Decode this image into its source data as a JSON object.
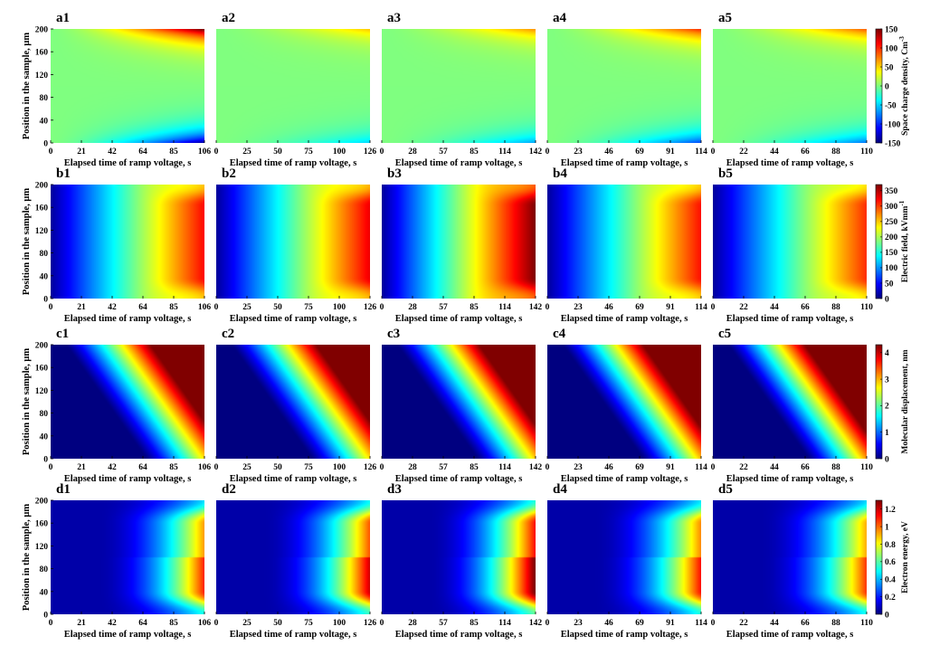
{
  "figure": {
    "colormap": "jet",
    "ylabel": "Position in the sample, μm",
    "xlabel": "Elapsed time of ramp voltage, s"
  },
  "chart_data": {
    "type": "heatmap",
    "rows": [
      {
        "id": "a",
        "colorbar_label": "Space charge density, Cm",
        "colorbar_label_sup": "-3",
        "colorbar_range": [
          -150,
          150
        ],
        "colorbar_ticks": [
          "150",
          "100",
          "50",
          "0",
          "-50",
          "-100",
          "-150"
        ],
        "pattern": "space_charge",
        "panels": [
          {
            "label": "a1",
            "xmax": 106,
            "xticks": [
              "0",
              "21",
              "42",
              "64",
              "85",
              "106"
            ],
            "intensity": 1.0
          },
          {
            "label": "a2",
            "xmax": 126,
            "xticks": [
              "0",
              "25",
              "50",
              "75",
              "100",
              "126"
            ],
            "intensity": 0.35
          },
          {
            "label": "a3",
            "xmax": 142,
            "xticks": [
              "0",
              "28",
              "57",
              "85",
              "114",
              "142"
            ],
            "intensity": 0.45
          },
          {
            "label": "a4",
            "xmax": 114,
            "xticks": [
              "0",
              "23",
              "46",
              "69",
              "91",
              "114"
            ],
            "intensity": 0.65
          },
          {
            "label": "a5",
            "xmax": 110,
            "xticks": [
              "0",
              "22",
              "44",
              "66",
              "88",
              "110"
            ],
            "intensity": 0.55
          }
        ]
      },
      {
        "id": "b",
        "colorbar_label": "Electric field, kVmm",
        "colorbar_label_sup": "-1",
        "colorbar_range": [
          0,
          370
        ],
        "colorbar_ticks": [
          "350",
          "300",
          "250",
          "200",
          "150",
          "100",
          "50",
          "0"
        ],
        "pattern": "field",
        "panels": [
          {
            "label": "b1",
            "xmax": 106,
            "xticks": [
              "0",
              "21",
              "42",
              "64",
              "85",
              "106"
            ],
            "intensity": 0.84
          },
          {
            "label": "b2",
            "xmax": 126,
            "xticks": [
              "0",
              "25",
              "50",
              "75",
              "100",
              "126"
            ],
            "intensity": 0.86
          },
          {
            "label": "b3",
            "xmax": 142,
            "xticks": [
              "0",
              "28",
              "57",
              "85",
              "114",
              "142"
            ],
            "intensity": 0.97
          },
          {
            "label": "b4",
            "xmax": 114,
            "xticks": [
              "0",
              "23",
              "46",
              "69",
              "91",
              "114"
            ],
            "intensity": 0.83
          },
          {
            "label": "b5",
            "xmax": 110,
            "xticks": [
              "0",
              "22",
              "44",
              "66",
              "88",
              "110"
            ],
            "intensity": 0.8
          }
        ]
      },
      {
        "id": "c",
        "colorbar_label": "Molecular displacement, nm",
        "colorbar_label_sup": "",
        "colorbar_range": [
          0,
          4.3
        ],
        "colorbar_ticks": [
          "4",
          "3",
          "2",
          "1",
          "0"
        ],
        "pattern": "displacement",
        "panels": [
          {
            "label": "c1",
            "xmax": 106,
            "xticks": [
              "0",
              "21",
              "42",
              "64",
              "85",
              "106"
            ],
            "intensity": 0.85
          },
          {
            "label": "c2",
            "xmax": 126,
            "xticks": [
              "0",
              "25",
              "50",
              "75",
              "100",
              "126"
            ],
            "intensity": 0.85
          },
          {
            "label": "c3",
            "xmax": 142,
            "xticks": [
              "0",
              "28",
              "57",
              "85",
              "114",
              "142"
            ],
            "intensity": 0.88
          },
          {
            "label": "c4",
            "xmax": 114,
            "xticks": [
              "0",
              "23",
              "46",
              "69",
              "91",
              "114"
            ],
            "intensity": 0.9
          },
          {
            "label": "c5",
            "xmax": 110,
            "xticks": [
              "0",
              "22",
              "44",
              "66",
              "88",
              "110"
            ],
            "intensity": 0.95
          }
        ]
      },
      {
        "id": "d",
        "colorbar_label": "Electron energy, eV",
        "colorbar_label_sup": "",
        "colorbar_range": [
          0,
          1.3
        ],
        "colorbar_ticks": [
          "1.2",
          "1",
          "0.8",
          "0.6",
          "0.4",
          "0.2",
          "0"
        ],
        "pattern": "energy",
        "panels": [
          {
            "label": "d1",
            "xmax": 106,
            "xticks": [
              "0",
              "21",
              "42",
              "64",
              "85",
              "106"
            ],
            "intensity": 0.8
          },
          {
            "label": "d2",
            "xmax": 126,
            "xticks": [
              "0",
              "25",
              "50",
              "75",
              "100",
              "126"
            ],
            "intensity": 0.88
          },
          {
            "label": "d3",
            "xmax": 142,
            "xticks": [
              "0",
              "28",
              "57",
              "85",
              "114",
              "142"
            ],
            "intensity": 0.97
          },
          {
            "label": "d4",
            "xmax": 114,
            "xticks": [
              "0",
              "23",
              "46",
              "69",
              "91",
              "114"
            ],
            "intensity": 0.82
          },
          {
            "label": "d5",
            "xmax": 110,
            "xticks": [
              "0",
              "22",
              "44",
              "66",
              "88",
              "110"
            ],
            "intensity": 0.78
          }
        ]
      }
    ],
    "y_range": [
      0,
      200
    ],
    "yticks": [
      "0",
      "40",
      "80",
      "120",
      "160",
      "200"
    ]
  }
}
